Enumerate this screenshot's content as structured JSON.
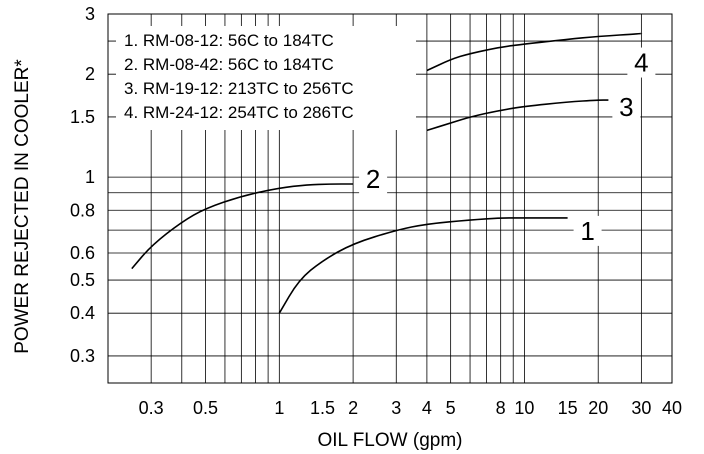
{
  "chart_data": {
    "type": "line",
    "title": "",
    "xlabel": "OIL FLOW (gpm)",
    "ylabel": "POWER REJECTED IN COOLER*",
    "x_scale": "log",
    "y_scale": "log",
    "xlim": [
      0.2,
      40
    ],
    "ylim": [
      0.25,
      3
    ],
    "grid": true,
    "x_ticks": [
      0.3,
      0.5,
      1,
      1.5,
      2,
      3,
      4,
      5,
      8,
      10,
      15,
      20,
      30,
      40
    ],
    "x_tick_labels": [
      "0.3",
      "0.5",
      "1",
      "1.5",
      "2",
      "3",
      "4",
      "5",
      "8",
      "10",
      "15",
      "20",
      "30",
      "40"
    ],
    "y_ticks": [
      0.3,
      0.4,
      0.5,
      0.6,
      0.8,
      1,
      1.5,
      2,
      3
    ],
    "y_tick_labels": [
      "0.3",
      "0.4",
      "0.5",
      "0.6",
      "0.8",
      "1",
      "1.5",
      "2",
      "3"
    ],
    "legend": {
      "placement": "top-left",
      "entries": [
        "1. RM-08-12: 56C to 184TC",
        "2. RM-08-42: 56C to 184TC",
        "3. RM-19-12: 213TC to 256TC",
        "4. RM-24-12: 254TC to 286TC"
      ]
    },
    "series": [
      {
        "name": "1",
        "x": [
          1,
          1.2,
          1.5,
          2,
          3,
          4,
          6,
          8,
          10,
          15
        ],
        "y": [
          0.4,
          0.5,
          0.57,
          0.64,
          0.7,
          0.73,
          0.75,
          0.76,
          0.76,
          0.76
        ]
      },
      {
        "name": "2",
        "x": [
          0.25,
          0.3,
          0.4,
          0.5,
          0.7,
          1,
          1.3,
          1.6,
          2
        ],
        "y": [
          0.54,
          0.63,
          0.74,
          0.81,
          0.88,
          0.93,
          0.95,
          0.955,
          0.955
        ]
      },
      {
        "name": "3",
        "x": [
          4,
          5,
          6,
          8,
          10,
          15,
          20,
          22
        ],
        "y": [
          1.37,
          1.44,
          1.5,
          1.57,
          1.61,
          1.66,
          1.68,
          1.68
        ]
      },
      {
        "name": "4",
        "x": [
          4,
          5,
          6,
          8,
          10,
          15,
          20,
          30
        ],
        "y": [
          2.05,
          2.21,
          2.3,
          2.4,
          2.45,
          2.53,
          2.58,
          2.63
        ]
      }
    ]
  }
}
